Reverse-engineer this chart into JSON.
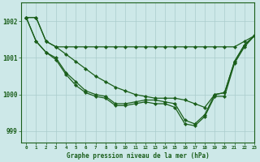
{
  "title": "Graphe pression niveau de la mer (hPa)",
  "bg_color": "#cde8e8",
  "grid_color": "#aacccc",
  "line_color": "#1a5e1a",
  "xlim": [
    -0.5,
    23
  ],
  "ylim": [
    998.7,
    1002.5
  ],
  "yticks": [
    999,
    1000,
    1001,
    1002
  ],
  "xtick_labels": [
    "0",
    "1",
    "2",
    "3",
    "4",
    "5",
    "6",
    "7",
    "8",
    "9",
    "10",
    "11",
    "12",
    "13",
    "14",
    "15",
    "16",
    "17",
    "18",
    "19",
    "20",
    "21",
    "22",
    "23"
  ],
  "series": [
    {
      "x": [
        0,
        1,
        2,
        3,
        4,
        5,
        6,
        7,
        8,
        9,
        10,
        11,
        12,
        13,
        14,
        15,
        16,
        17,
        18,
        19,
        20,
        21,
        22,
        23
      ],
      "y": [
        1002.1,
        1002.1,
        1001.45,
        1001.3,
        1001.3,
        1001.3,
        1001.3,
        1001.3,
        1001.3,
        1001.3,
        1001.3,
        1001.3,
        1001.3,
        1001.3,
        1001.3,
        1001.3,
        1001.3,
        1001.3,
        1001.3,
        1001.3,
        1001.3,
        1001.3,
        1001.45,
        1001.6
      ]
    },
    {
      "x": [
        0,
        1,
        2,
        3,
        4,
        5,
        6,
        7,
        8,
        9,
        10,
        11,
        12,
        13,
        14,
        15,
        16,
        17,
        18,
        19,
        20,
        21,
        22,
        23
      ],
      "y": [
        1002.1,
        1002.1,
        1001.45,
        1001.3,
        1001.1,
        1000.9,
        1000.7,
        1000.5,
        1000.35,
        1000.2,
        1000.1,
        1000.0,
        999.95,
        999.9,
        999.9,
        999.9,
        999.85,
        999.75,
        999.65,
        1000.0,
        1000.05,
        1000.9,
        1001.35,
        1001.6
      ]
    },
    {
      "x": [
        0,
        1,
        2,
        3,
        4,
        5,
        6,
        7,
        8,
        9,
        10,
        11,
        12,
        13,
        14,
        15,
        16,
        17,
        18,
        19,
        20,
        21,
        22,
        23
      ],
      "y": [
        1002.1,
        1001.45,
        1001.15,
        1001.0,
        1000.6,
        1000.35,
        1000.1,
        1000.0,
        999.95,
        999.75,
        999.75,
        999.8,
        999.85,
        999.85,
        999.8,
        999.75,
        999.3,
        999.2,
        999.45,
        1000.0,
        1000.05,
        1000.9,
        1001.35,
        1001.6
      ]
    },
    {
      "x": [
        0,
        1,
        2,
        3,
        4,
        5,
        6,
        7,
        8,
        9,
        10,
        11,
        12,
        13,
        14,
        15,
        16,
        17,
        18,
        19,
        20,
        21,
        22,
        23
      ],
      "y": [
        1002.1,
        1001.45,
        1001.15,
        1000.95,
        1000.55,
        1000.25,
        1000.05,
        999.95,
        999.9,
        999.7,
        999.7,
        999.75,
        999.8,
        999.75,
        999.75,
        999.65,
        999.2,
        999.15,
        999.4,
        999.95,
        999.95,
        1000.85,
        1001.3,
        1001.6
      ]
    }
  ]
}
